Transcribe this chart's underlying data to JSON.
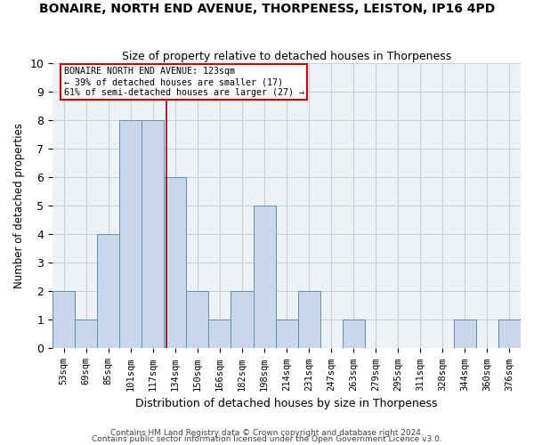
{
  "title": "BONAIRE, NORTH END AVENUE, THORPENESS, LEISTON, IP16 4PD",
  "subtitle": "Size of property relative to detached houses in Thorpeness",
  "xlabel": "Distribution of detached houses by size in Thorpeness",
  "ylabel": "Number of detached properties",
  "categories": [
    "53sqm",
    "69sqm",
    "85sqm",
    "101sqm",
    "117sqm",
    "134sqm",
    "150sqm",
    "166sqm",
    "182sqm",
    "198sqm",
    "214sqm",
    "231sqm",
    "247sqm",
    "263sqm",
    "279sqm",
    "295sqm",
    "311sqm",
    "328sqm",
    "344sqm",
    "360sqm",
    "376sqm"
  ],
  "values": [
    2,
    1,
    4,
    8,
    8,
    6,
    2,
    1,
    2,
    5,
    1,
    2,
    0,
    1,
    0,
    0,
    0,
    0,
    1,
    0,
    1
  ],
  "bar_color": "#c8d8ea",
  "bar_edge_color": "#6090b8",
  "vline_x": 4.62,
  "vline_color": "#990000",
  "annotation_text": "BONAIRE NORTH END AVENUE: 123sqm\n← 39% of detached houses are smaller (17)\n61% of semi-detached houses are larger (27) →",
  "annotation_box_color": "#ffffff",
  "annotation_box_edge": "#cc0000",
  "ylim": [
    0,
    10
  ],
  "yticks": [
    0,
    1,
    2,
    3,
    4,
    5,
    6,
    7,
    8,
    9,
    10
  ],
  "footnote1": "Contains HM Land Registry data © Crown copyright and database right 2024.",
  "footnote2": "Contains public sector information licensed under the Open Government Licence v3.0.",
  "grid_color": "#c8d0dc",
  "background_color": "#eef2f7"
}
